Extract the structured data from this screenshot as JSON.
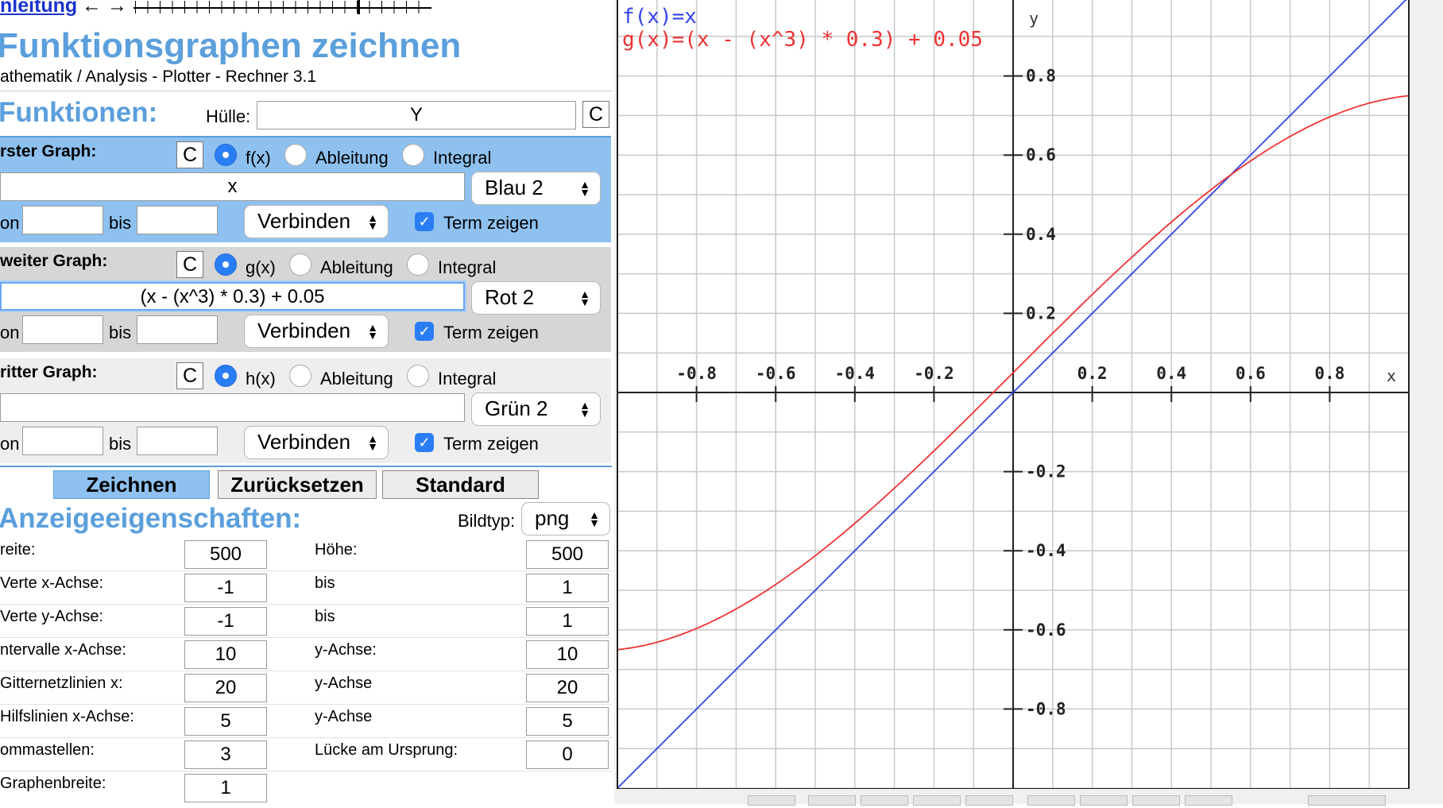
{
  "nav": {
    "link": "nleitung",
    "arrows": "← →"
  },
  "header": {
    "title": "Funktionsgraphen zeichnen",
    "subtitle": "athematik / Analysis - Plotter - Rechner 3.1"
  },
  "functions": {
    "heading": "Funktionen:",
    "huelle_label": "Hülle:",
    "huelle_value": "Y",
    "clear": "C"
  },
  "graphs": [
    {
      "label": "rster Graph:",
      "clear": "C",
      "opt1": "f(x)",
      "opt2": "Ableitung",
      "opt3": "Integral",
      "term": "x",
      "color": "Blau 2",
      "von": "on",
      "bis": "bis",
      "mode": "Verbinden",
      "show": "Term zeigen"
    },
    {
      "label": "weiter Graph:",
      "clear": "C",
      "opt1": "g(x)",
      "opt2": "Ableitung",
      "opt3": "Integral",
      "term": "(x - (x^3) * 0.3) + 0.05",
      "color": "Rot 2",
      "von": "on",
      "bis": "bis",
      "mode": "Verbinden",
      "show": "Term zeigen"
    },
    {
      "label": "ritter Graph:",
      "clear": "C",
      "opt1": "h(x)",
      "opt2": "Ableitung",
      "opt3": "Integral",
      "term": "",
      "color": "Grün 2",
      "von": "on",
      "bis": "bis",
      "mode": "Verbinden",
      "show": "Term zeigen"
    }
  ],
  "buttons": {
    "draw": "Zeichnen",
    "reset": "Zurücksetzen",
    "standard": "Standard"
  },
  "display": {
    "heading": "Anzeigeeigenschaften:",
    "bildtyp_label": "Bildtyp:",
    "bildtyp_value": "png",
    "rows": [
      {
        "l1": "reite:",
        "v1": "500",
        "l2": "Höhe:",
        "v2": "500"
      },
      {
        "l1": "Verte x-Achse:",
        "v1": "-1",
        "l2": "bis",
        "v2": "1"
      },
      {
        "l1": "Verte y-Achse:",
        "v1": "-1",
        "l2": "bis",
        "v2": "1"
      },
      {
        "l1": "ntervalle x-Achse:",
        "v1": "10",
        "l2": "y-Achse:",
        "v2": "10"
      },
      {
        "l1": "Gitternetzlinien x:",
        "v1": "20",
        "l2": "y-Achse",
        "v2": "20"
      },
      {
        "l1": "Hilfslinien x-Achse:",
        "v1": "5",
        "l2": "y-Achse",
        "v2": "5"
      },
      {
        "l1": "ommastellen:",
        "v1": "3",
        "l2": "Lücke am Ursprung:",
        "v2": "0"
      },
      {
        "l1": "Graphenbreite:",
        "v1": "1",
        "l2": "",
        "v2": ""
      }
    ]
  },
  "colors": {
    "accent": "#5b9fdc",
    "graph1_panel": "#8ec1ef",
    "graph2_panel": "#d6d6d6",
    "graph3_panel": "#eeeeee",
    "f_line": "#3344ee",
    "g_line": "#ee3333"
  },
  "chart_data": {
    "type": "line",
    "title_lines": [
      "f(x)=x",
      "g(x)=(x - (x^3) * 0.3) + 0.05"
    ],
    "xlabel": "x",
    "ylabel": "y",
    "xlim": [
      -1,
      1
    ],
    "ylim": [
      -1,
      1
    ],
    "x_ticks": [
      "-0.8",
      "-0.6",
      "-0.4",
      "-0.2",
      "0.2",
      "0.4",
      "0.6",
      "0.8"
    ],
    "y_ticks": [
      "0.8",
      "0.6",
      "0.4",
      "0.2",
      "-0.2",
      "-0.4",
      "-0.6",
      "-0.8"
    ],
    "grid": true,
    "series": [
      {
        "name": "f(x)=x",
        "color": "#3344ee",
        "x": [
          -1,
          -0.5,
          0,
          0.5,
          1
        ],
        "y": [
          -1,
          -0.5,
          0,
          0.5,
          1
        ]
      },
      {
        "name": "g(x)=(x - (x^3) * 0.3) + 0.05",
        "color": "#ee3333",
        "x": [
          -1,
          -0.8,
          -0.6,
          -0.4,
          -0.2,
          0,
          0.2,
          0.4,
          0.6,
          0.8,
          1
        ],
        "y": [
          -0.65,
          -0.596,
          -0.485,
          -0.331,
          -0.148,
          0.05,
          0.248,
          0.431,
          0.585,
          0.696,
          0.75
        ]
      }
    ]
  }
}
